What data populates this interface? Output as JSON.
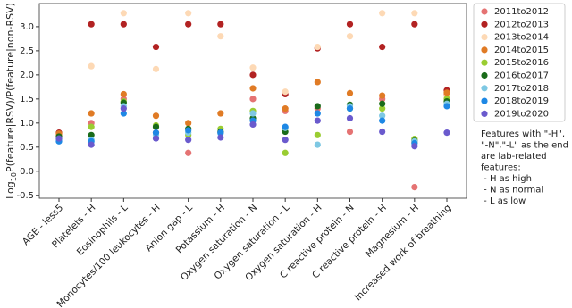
{
  "chart_data": {
    "type": "scatter",
    "y_label": [
      "Log",
      "10",
      "P(feature|RSV)/P(feature|non-RSV)"
    ],
    "categories": [
      "AGE - less5",
      "Platelets - H",
      "Eosinophils - L",
      "Monocytes/100 leukocytes - H",
      "Anion gap - L",
      "Potassium - H",
      "Oxygen saturation - N",
      "Oxygen saturation - L",
      "Oxygen saturation - H",
      "C reactive protein - N",
      "C reactive protein - H",
      "Magnesium - H",
      "Increased work of breathing"
    ],
    "ylim": [
      -0.56,
      3.48
    ],
    "yticks": [
      -0.5,
      {
        "value": 0,
        "label": "0.0"
      },
      0.5,
      {
        "value": 1,
        "label": "1.0"
      },
      1.5,
      {
        "value": 2,
        "label": "2.0"
      },
      2.5,
      {
        "value": 3,
        "label": "3.0"
      }
    ],
    "legend": "outside-right",
    "series": [
      {
        "name": "2011to2012",
        "color": "#e57373",
        "values": [
          0.75,
          1.0,
          1.5,
          0.8,
          0.38,
          0.8,
          1.5,
          1.25,
          1.3,
          0.82,
          1.5,
          -0.33,
          1.6
        ]
      },
      {
        "name": "2012to2013",
        "color": "#b22222",
        "values": [
          0.8,
          3.05,
          3.05,
          2.58,
          3.05,
          3.05,
          2.0,
          1.6,
          2.55,
          3.05,
          2.58,
          3.05,
          1.68
        ]
      },
      {
        "name": "2013to2014",
        "color": "#fdd9b5",
        "values": [
          0.72,
          2.18,
          3.28,
          2.12,
          3.28,
          2.8,
          2.15,
          1.65,
          2.58,
          2.8,
          3.28,
          3.28,
          1.55
        ]
      },
      {
        "name": "2014to2015",
        "color": "#e07b25",
        "values": [
          0.78,
          1.2,
          1.6,
          1.15,
          1.0,
          1.2,
          1.72,
          1.3,
          1.85,
          1.62,
          1.57,
          0.6,
          1.63
        ]
      },
      {
        "name": "2015to2016",
        "color": "#9acd32",
        "values": [
          0.7,
          0.92,
          1.45,
          0.95,
          0.75,
          0.88,
          1.25,
          0.38,
          0.75,
          1.3,
          1.3,
          0.67,
          1.5
        ]
      },
      {
        "name": "2016to2017",
        "color": "#1a6b1a",
        "values": [
          0.72,
          0.75,
          1.42,
          0.92,
          0.88,
          0.82,
          1.1,
          0.82,
          1.35,
          1.38,
          1.4,
          0.63,
          1.45
        ]
      },
      {
        "name": "2017to2018",
        "color": "#7ec8e3",
        "values": [
          0.65,
          0.65,
          1.35,
          0.75,
          0.8,
          0.78,
          1.2,
          0.9,
          0.55,
          1.35,
          1.15,
          0.62,
          1.4
        ]
      },
      {
        "name": "2018to2019",
        "color": "#1e88e5",
        "values": [
          0.62,
          0.62,
          1.2,
          0.8,
          0.85,
          0.8,
          1.05,
          0.92,
          1.2,
          1.3,
          1.05,
          0.58,
          1.35
        ]
      },
      {
        "name": "2019to2020",
        "color": "#6a5acd",
        "values": [
          0.68,
          0.55,
          1.3,
          0.68,
          0.65,
          0.7,
          0.97,
          0.65,
          1.05,
          1.1,
          0.82,
          0.52,
          0.8
        ]
      }
    ],
    "annotation": [
      "Features with \"-H\",",
      "\"-N\",\"-L\" as the end",
      "are lab-related",
      "features:",
      " - H as high",
      " - N as normal",
      " - L as low"
    ]
  }
}
